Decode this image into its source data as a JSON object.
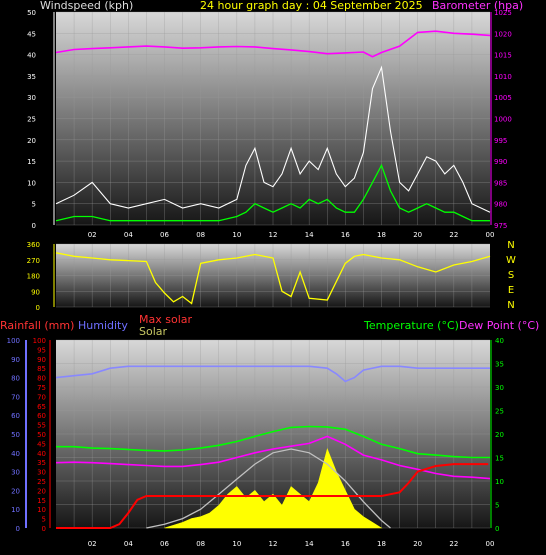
{
  "header": {
    "wind_title": "Windspeed (kph)",
    "graph_title": "24 hour graph day : 04 September 2025",
    "baro_title": "Barometer (hpa)"
  },
  "colors": {
    "wind_gust": "#ffffff",
    "wind_avg": "#00ff00",
    "barometer": "#ff00ff",
    "direction": "#ffff00",
    "rain": "#ff0000",
    "humidity": "#8888ff",
    "max_solar": "#c0c0c0",
    "solar": "#ffff00",
    "temperature": "#00ff00",
    "dewpoint": "#ff00ff",
    "rain_axis": "#ff0000",
    "humidity_axis": "#7070ff",
    "temp_axis": "#00ff00"
  },
  "x_ticks": [
    "02",
    "04",
    "06",
    "08",
    "10",
    "12",
    "14",
    "16",
    "18",
    "20",
    "22",
    "00"
  ],
  "wind_panel": {
    "ylim": [
      0,
      50
    ],
    "yticks": [
      0,
      5,
      10,
      15,
      20,
      25,
      30,
      35,
      40,
      45,
      50
    ],
    "baro_ylim": [
      975,
      1025
    ],
    "baro_ticks": [
      975,
      980,
      985,
      990,
      995,
      1000,
      1005,
      1010,
      1015,
      1020,
      1025
    ]
  },
  "dir_panel": {
    "ylim": [
      0,
      360
    ],
    "yticks": [
      0,
      90,
      180,
      270,
      360
    ],
    "compass": [
      "N",
      "W",
      "S",
      "E",
      "N"
    ]
  },
  "bottom_panel": {
    "rain_label": "Rainfall (mm)",
    "humidity_label": "Humidity",
    "max_solar_label": "Max solar",
    "solar_label": "Solar",
    "temp_label": "Temperature (°C)",
    "dew_label": "Dew Point (°C)",
    "left_ylim": [
      0,
      100
    ],
    "left_ticks": [
      0,
      5,
      10,
      15,
      20,
      25,
      30,
      35,
      40,
      45,
      50,
      55,
      60,
      65,
      70,
      75,
      80,
      85,
      90,
      95,
      100
    ],
    "temp_ylim": [
      0,
      40
    ],
    "temp_ticks": [
      0,
      5,
      10,
      15,
      20,
      25,
      30,
      35,
      40
    ]
  },
  "chart_data": [
    {
      "type": "line",
      "title": "24 hour graph day : 04 September 2025",
      "ylabel": "Windspeed (kph)",
      "y2label": "Barometer (hpa)",
      "ylim": [
        0,
        50
      ],
      "y2lim": [
        975,
        1025
      ],
      "series": [
        {
          "name": "Windspeed (kph)",
          "x": [
            0,
            1,
            2,
            3,
            4,
            5,
            6,
            7,
            8,
            9,
            10,
            10.5,
            11,
            11.5,
            12,
            12.5,
            13,
            13.5,
            14,
            14.5,
            15,
            15.5,
            16,
            16.5,
            17,
            17.5,
            18,
            18.5,
            19,
            19.5,
            20,
            20.5,
            21,
            21.5,
            22,
            22.5,
            23,
            24
          ],
          "values": [
            1,
            2,
            2,
            1,
            1,
            1,
            1,
            1,
            1,
            1,
            2,
            3,
            5,
            4,
            3,
            4,
            5,
            4,
            6,
            5,
            6,
            4,
            3,
            3,
            6,
            10,
            14,
            8,
            4,
            3,
            4,
            5,
            4,
            3,
            3,
            2,
            1,
            1
          ]
        },
        {
          "name": "Gust",
          "x": [
            0,
            1,
            2,
            3,
            4,
            5,
            6,
            7,
            8,
            9,
            10,
            10.5,
            11,
            11.5,
            12,
            12.5,
            13,
            13.5,
            14,
            14.5,
            15,
            15.5,
            16,
            16.5,
            17,
            17.5,
            18,
            18.5,
            19,
            19.5,
            20,
            20.5,
            21,
            21.5,
            22,
            22.5,
            23,
            24
          ],
          "values": [
            5,
            7,
            10,
            5,
            4,
            5,
            6,
            4,
            5,
            4,
            6,
            14,
            18,
            10,
            9,
            12,
            18,
            12,
            15,
            13,
            18,
            12,
            9,
            11,
            17,
            32,
            37,
            22,
            10,
            8,
            12,
            16,
            15,
            12,
            14,
            10,
            5,
            3
          ]
        },
        {
          "name": "Barometer (hpa)",
          "axis": "right",
          "x": [
            0,
            1,
            2,
            3,
            4,
            5,
            6,
            7,
            8,
            9,
            10,
            11,
            12,
            13,
            14,
            15,
            16,
            17,
            17.5,
            18,
            19,
            20,
            21,
            22,
            23,
            24
          ],
          "values": [
            1015.5,
            1016.2,
            1016.4,
            1016.6,
            1016.8,
            1017,
            1016.8,
            1016.5,
            1016.6,
            1016.8,
            1016.9,
            1016.8,
            1016.4,
            1016.1,
            1015.7,
            1015.2,
            1015.4,
            1015.6,
            1014.5,
            1015.5,
            1017,
            1020.2,
            1020.5,
            1020,
            1019.8,
            1019.5
          ]
        }
      ]
    },
    {
      "type": "line",
      "title": "",
      "ylabel": "",
      "ylim": [
        0,
        360
      ],
      "series": [
        {
          "name": "Wind direction",
          "x": [
            0,
            1,
            2,
            3,
            4,
            5,
            5.5,
            6,
            6.5,
            7,
            7.5,
            8,
            9,
            10,
            11,
            12,
            12.5,
            13,
            13.5,
            14,
            15,
            16,
            16.5,
            17,
            18,
            19,
            20,
            21,
            22,
            23,
            24
          ],
          "values": [
            310,
            290,
            280,
            270,
            265,
            260,
            140,
            80,
            30,
            60,
            20,
            250,
            270,
            280,
            300,
            280,
            90,
            60,
            200,
            50,
            40,
            250,
            290,
            300,
            280,
            270,
            230,
            200,
            240,
            260,
            290
          ]
        }
      ]
    },
    {
      "type": "line",
      "title": "",
      "ylabel": "Rainfall (mm)",
      "y2label": "Temperature (°C)",
      "ylim": [
        0,
        100
      ],
      "y2lim": [
        0,
        40
      ],
      "series": [
        {
          "name": "Rainfall (mm)",
          "x": [
            0,
            3,
            3.5,
            4,
            4.5,
            5,
            6,
            8,
            10,
            12,
            14,
            15,
            16,
            17,
            18,
            18.5,
            19,
            19.5,
            20,
            21,
            22,
            23,
            23.9
          ],
          "values": [
            0,
            0,
            2,
            8,
            15,
            17,
            17,
            17,
            17,
            17,
            17,
            17,
            17,
            17,
            17,
            18,
            19,
            24,
            30,
            33,
            34,
            34,
            34
          ]
        },
        {
          "name": "Humidity",
          "x": [
            0,
            1,
            2,
            3,
            4,
            5,
            6,
            7,
            8,
            9,
            10,
            11,
            12,
            13,
            14,
            15,
            15.5,
            16,
            16.5,
            17,
            18,
            19,
            20,
            21,
            22,
            23,
            24
          ],
          "values": [
            80,
            81,
            82,
            85,
            86,
            86,
            86,
            86,
            86,
            86,
            86,
            86,
            86,
            86,
            86,
            85,
            82,
            78,
            80,
            84,
            86,
            86,
            85,
            85,
            85,
            85,
            85
          ]
        },
        {
          "name": "Max solar",
          "x": [
            5,
            6,
            7,
            8,
            9,
            10,
            11,
            12,
            13,
            14,
            15,
            16,
            17,
            18,
            18.5
          ],
          "values": [
            0,
            2,
            5,
            10,
            18,
            26,
            34,
            40,
            42,
            40,
            34,
            25,
            14,
            4,
            0
          ]
        },
        {
          "name": "Solar",
          "x": [
            6,
            7,
            7.5,
            8,
            8.5,
            9,
            9.5,
            10,
            10.5,
            11,
            11.5,
            12,
            12.5,
            13,
            13.5,
            14,
            14.5,
            15,
            15.5,
            16,
            16.5,
            17,
            17.5,
            18
          ],
          "values": [
            0,
            3,
            5,
            6,
            8,
            12,
            18,
            22,
            16,
            20,
            14,
            18,
            12,
            22,
            18,
            14,
            24,
            42,
            30,
            20,
            10,
            6,
            3,
            0
          ]
        },
        {
          "name": "Temperature (°C)",
          "axis": "right",
          "x": [
            0,
            1,
            2,
            3,
            4,
            5,
            6,
            7,
            8,
            9,
            10,
            11,
            12,
            13,
            14,
            15,
            16,
            17,
            18,
            19,
            20,
            21,
            22,
            23,
            24
          ],
          "values": [
            17.3,
            17.3,
            17,
            16.9,
            16.7,
            16.5,
            16.4,
            16.6,
            17,
            17.6,
            18.4,
            19.5,
            20.5,
            21.4,
            21.6,
            21.5,
            21,
            19.5,
            17.8,
            16.9,
            15.8,
            15.5,
            15.2,
            15,
            15
          ]
        },
        {
          "name": "Dew Point (°C)",
          "axis": "right",
          "x": [
            0,
            1,
            2,
            3,
            4,
            5,
            6,
            7,
            8,
            9,
            10,
            11,
            12,
            13,
            14,
            15,
            16,
            17,
            18,
            19,
            20,
            21,
            22,
            23,
            24
          ],
          "values": [
            13.9,
            14,
            13.9,
            13.7,
            13.5,
            13.3,
            13.1,
            13.1,
            13.5,
            14,
            15,
            16,
            16.8,
            17.4,
            18,
            19.5,
            17.8,
            15.5,
            14.5,
            13.3,
            12.5,
            11.6,
            11,
            10.8,
            10.5
          ]
        }
      ]
    }
  ]
}
